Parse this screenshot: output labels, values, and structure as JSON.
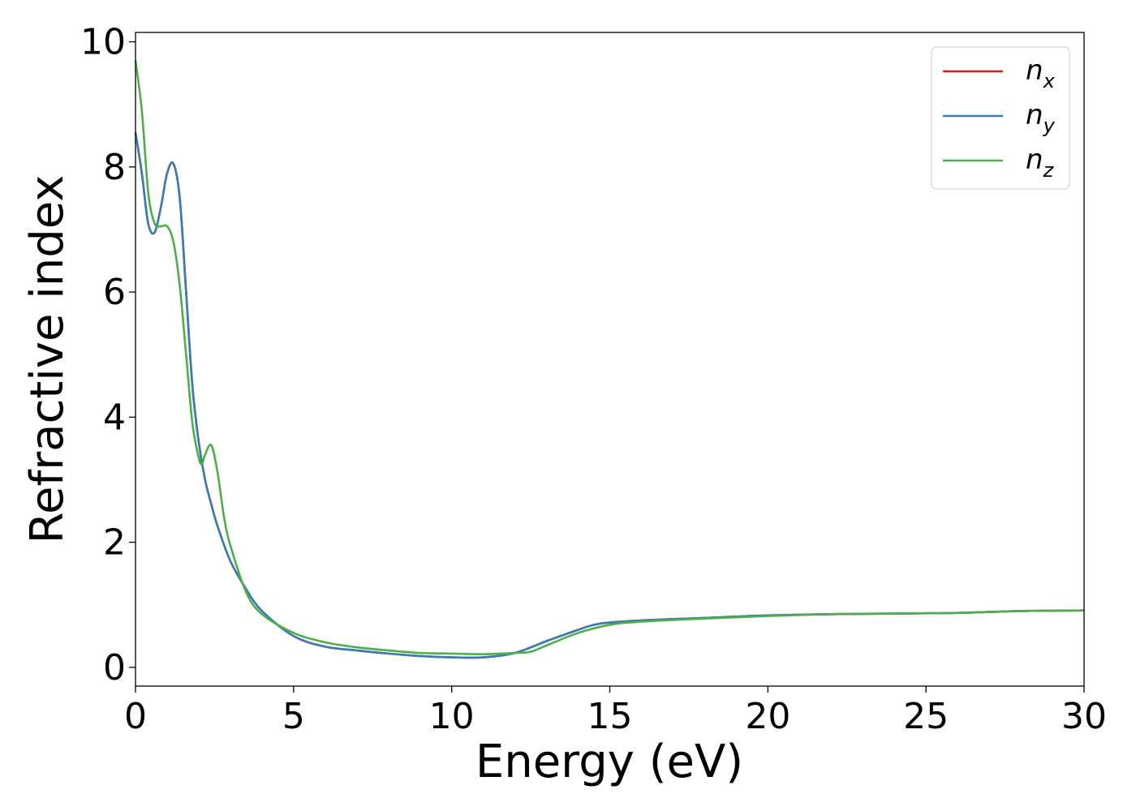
{
  "chart_data": {
    "type": "line",
    "xlabel": "Energy (eV)",
    "ylabel": "Refractive index",
    "xlim": [
      0,
      30
    ],
    "ylim": [
      -0.3,
      10.15
    ],
    "xticks": [
      0,
      5,
      10,
      15,
      20,
      25,
      30
    ],
    "yticks": [
      0,
      2,
      4,
      6,
      8,
      10
    ],
    "grid": false,
    "legend_position": "top-right",
    "series": [
      {
        "name": "n",
        "subscript": "x",
        "color": "#e41a1c",
        "x": [
          0,
          0.2,
          0.4,
          0.6,
          0.8,
          1.0,
          1.2,
          1.4,
          1.6,
          1.8,
          2.0,
          2.2,
          2.4,
          2.6,
          3,
          3.5,
          4,
          5,
          6,
          7,
          8,
          9,
          10,
          11,
          12,
          13,
          14,
          14.7,
          16,
          18,
          20,
          22,
          24,
          26,
          28,
          30
        ],
        "y": [
          8.55,
          7.9,
          7.1,
          6.95,
          7.35,
          7.9,
          8.05,
          7.5,
          6.0,
          4.5,
          3.6,
          3.0,
          2.6,
          2.25,
          1.7,
          1.25,
          0.9,
          0.5,
          0.33,
          0.27,
          0.22,
          0.18,
          0.16,
          0.16,
          0.23,
          0.42,
          0.6,
          0.7,
          0.75,
          0.79,
          0.83,
          0.85,
          0.86,
          0.87,
          0.9,
          0.91
        ]
      },
      {
        "name": "n",
        "subscript": "y",
        "color": "#377eb8",
        "x": [
          0,
          0.2,
          0.4,
          0.6,
          0.8,
          1.0,
          1.2,
          1.4,
          1.6,
          1.8,
          2.0,
          2.2,
          2.4,
          2.6,
          3,
          3.5,
          4,
          5,
          6,
          7,
          8,
          9,
          10,
          11,
          12,
          13,
          14,
          14.7,
          16,
          18,
          20,
          22,
          24,
          26,
          28,
          30
        ],
        "y": [
          8.55,
          7.9,
          7.1,
          6.95,
          7.35,
          7.9,
          8.05,
          7.5,
          6.0,
          4.5,
          3.6,
          3.0,
          2.6,
          2.25,
          1.7,
          1.25,
          0.9,
          0.5,
          0.33,
          0.27,
          0.22,
          0.18,
          0.16,
          0.16,
          0.23,
          0.42,
          0.6,
          0.7,
          0.75,
          0.79,
          0.83,
          0.85,
          0.86,
          0.87,
          0.9,
          0.91
        ]
      },
      {
        "name": "n",
        "subscript": "z",
        "color": "#4daf4a",
        "x": [
          0,
          0.2,
          0.4,
          0.6,
          0.8,
          1.0,
          1.2,
          1.4,
          1.6,
          1.8,
          2.0,
          2.1,
          2.2,
          2.4,
          2.6,
          2.8,
          3,
          3.5,
          4,
          5,
          6,
          7,
          8,
          9,
          10,
          11,
          12,
          12.5,
          13,
          14,
          15,
          16,
          18,
          20,
          22,
          24,
          26,
          28,
          30
        ],
        "y": [
          9.7,
          8.9,
          7.6,
          7.1,
          7.05,
          7.05,
          6.8,
          6.1,
          5.0,
          3.9,
          3.35,
          3.25,
          3.4,
          3.55,
          3.1,
          2.4,
          1.95,
          1.2,
          0.85,
          0.55,
          0.4,
          0.32,
          0.27,
          0.23,
          0.22,
          0.21,
          0.23,
          0.25,
          0.35,
          0.55,
          0.68,
          0.73,
          0.78,
          0.82,
          0.85,
          0.86,
          0.87,
          0.9,
          0.91
        ]
      }
    ]
  }
}
